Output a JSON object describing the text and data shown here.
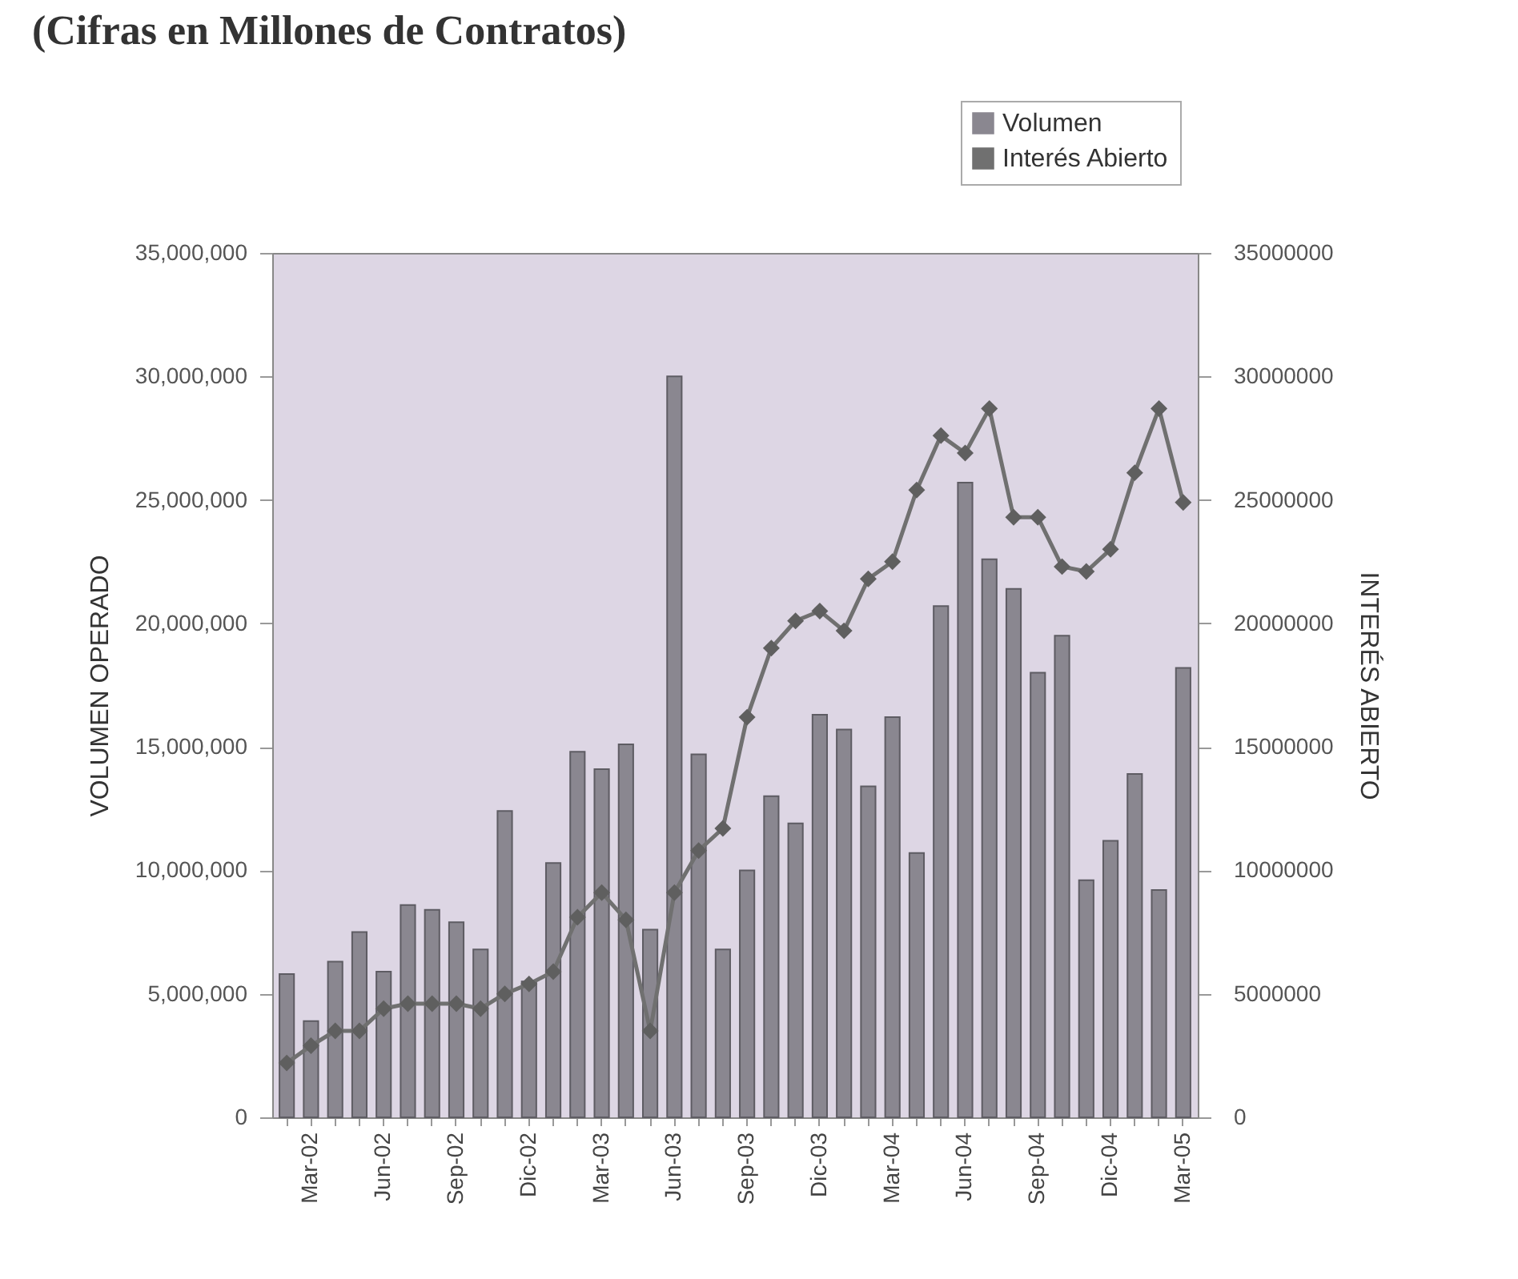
{
  "chart_data": {
    "type": "bar",
    "title": "(Cifras en Millones de Contratos)",
    "ylabel": "VOLUMEN OPERADO",
    "y2label": "INTERÉS ABIERTO",
    "categories": [
      null,
      "Mar-02",
      null,
      null,
      "Jun-02",
      null,
      null,
      "Sep-02",
      null,
      null,
      "Dic-02",
      null,
      null,
      "Mar-03",
      null,
      null,
      "Jun-03",
      null,
      null,
      "Sep-03",
      null,
      null,
      "Dic-03",
      null,
      null,
      "Mar-04",
      null,
      null,
      "Jun-04",
      null,
      null,
      "Sep-04",
      null,
      null,
      "Dic-04",
      null,
      null,
      "Mar-05"
    ],
    "series": [
      {
        "name": "Volumen",
        "color": "#8a8790",
        "values": [
          5800000,
          3900000,
          6300000,
          7500000,
          5900000,
          8600000,
          8400000,
          7900000,
          6800000,
          12400000,
          5500000,
          10300000,
          14800000,
          14100000,
          15100000,
          7600000,
          30000000,
          14700000,
          6800000,
          10000000,
          13000000,
          11900000,
          16300000,
          15700000,
          13400000,
          16200000,
          10700000,
          20700000,
          25700000,
          22600000,
          21400000,
          18000000,
          19500000,
          9600000,
          11200000,
          13900000,
          9200000,
          18200000
        ]
      },
      {
        "name": "Interés Abierto",
        "type": "line",
        "axis": "y2",
        "color": "#707070",
        "marker": "diamond",
        "values": [
          2200000,
          2900000,
          3500000,
          3500000,
          4400000,
          4600000,
          4600000,
          4600000,
          4400000,
          5000000,
          5400000,
          5900000,
          8100000,
          9100000,
          8000000,
          3500000,
          9100000,
          10800000,
          11700000,
          16200000,
          19000000,
          20100000,
          20500000,
          19700000,
          21800000,
          22500000,
          25400000,
          27600000,
          26900000,
          28700000,
          24300000,
          24300000,
          22300000,
          22100000,
          23000000,
          26100000,
          28700000,
          24900000
        ]
      }
    ],
    "ylim": [
      0,
      35000000
    ],
    "yticks": [
      {
        "value": 0,
        "label": "0"
      },
      {
        "value": 5000000,
        "label": "5,000,000"
      },
      {
        "value": 10000000,
        "label": "10,000,000"
      },
      {
        "value": 15000000,
        "label": "15,000,000"
      },
      {
        "value": 20000000,
        "label": "20,000,000"
      },
      {
        "value": 25000000,
        "label": "25,000,000"
      },
      {
        "value": 30000000,
        "label": "30,000,000"
      },
      {
        "value": 35000000,
        "label": "35,000,000"
      }
    ],
    "y2lim": [
      0,
      35000000
    ],
    "y2ticks": [
      0,
      5000000,
      10000000,
      15000000,
      20000000,
      25000000,
      30000000,
      35000000
    ],
    "legend": "top right",
    "grid": false
  }
}
